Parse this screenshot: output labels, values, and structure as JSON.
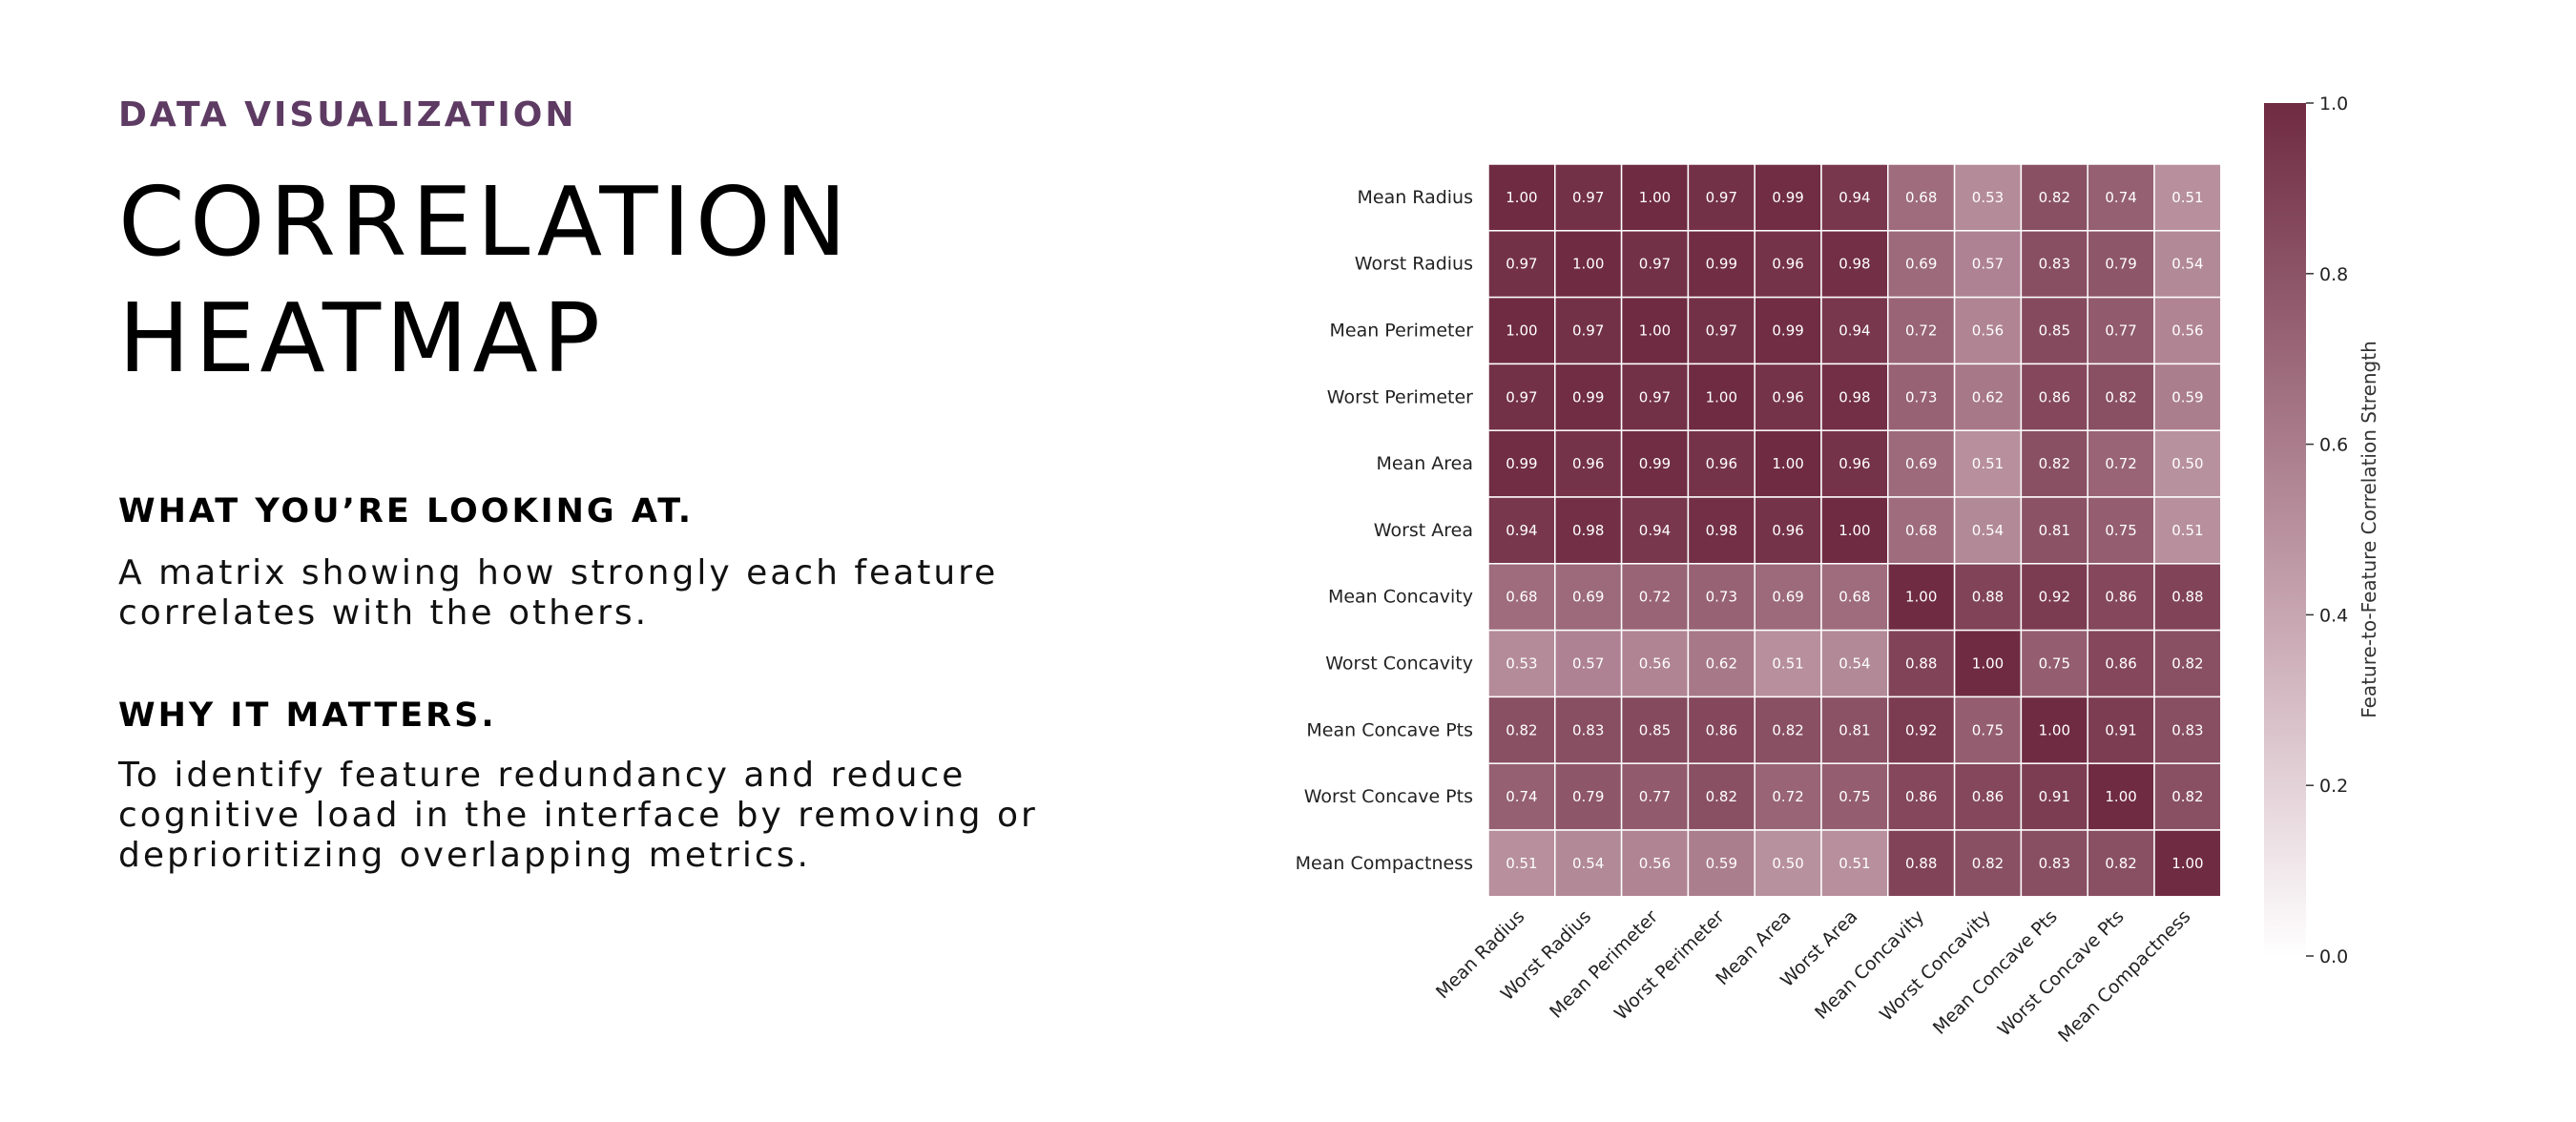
{
  "left_panel": {
    "eyebrow": "DATA VISUALIZATION",
    "title_line1": "CORRELATION",
    "title_line2": "HEATMAP",
    "section1": {
      "heading": "WHAT YOU’RE LOOKING AT.",
      "body_lines": [
        "A matrix showing how strongly each feature",
        "correlates with the others."
      ]
    },
    "section2": {
      "heading": "WHY IT MATTERS.",
      "body_lines": [
        "To identify feature redundancy and reduce",
        "cognitive load in the interface by removing or",
        "deprioritizing overlapping metrics."
      ]
    }
  },
  "colors": {
    "eyebrow": "#5e3b63",
    "scale_low": "#ffffff",
    "scale_mid": "#c7a5b1",
    "scale_high": "#6f2b42"
  },
  "chart_data": {
    "type": "heatmap",
    "title": "",
    "rows": [
      "Mean Radius",
      "Worst Radius",
      "Mean Perimeter",
      "Worst Perimeter",
      "Mean Area",
      "Worst Area",
      "Mean Concavity",
      "Worst Concavity",
      "Mean Concave Pts",
      "Worst Concave Pts",
      "Mean Compactness"
    ],
    "columns": [
      "Mean Radius",
      "Worst Radius",
      "Mean Perimeter",
      "Worst Perimeter",
      "Mean Area",
      "Worst Area",
      "Mean Concavity",
      "Worst Concavity",
      "Mean Concave Pts",
      "Worst Concave Pts",
      "Mean Compactness"
    ],
    "values": [
      [
        1.0,
        0.97,
        1.0,
        0.97,
        0.99,
        0.94,
        0.68,
        0.53,
        0.82,
        0.74,
        0.51
      ],
      [
        0.97,
        1.0,
        0.97,
        0.99,
        0.96,
        0.98,
        0.69,
        0.57,
        0.83,
        0.79,
        0.54
      ],
      [
        1.0,
        0.97,
        1.0,
        0.97,
        0.99,
        0.94,
        0.72,
        0.56,
        0.85,
        0.77,
        0.56
      ],
      [
        0.97,
        0.99,
        0.97,
        1.0,
        0.96,
        0.98,
        0.73,
        0.62,
        0.86,
        0.82,
        0.59
      ],
      [
        0.99,
        0.96,
        0.99,
        0.96,
        1.0,
        0.96,
        0.69,
        0.51,
        0.82,
        0.72,
        0.5
      ],
      [
        0.94,
        0.98,
        0.94,
        0.98,
        0.96,
        1.0,
        0.68,
        0.54,
        0.81,
        0.75,
        0.51
      ],
      [
        0.68,
        0.69,
        0.72,
        0.73,
        0.69,
        0.68,
        1.0,
        0.88,
        0.92,
        0.86,
        0.88
      ],
      [
        0.53,
        0.57,
        0.56,
        0.62,
        0.51,
        0.54,
        0.88,
        1.0,
        0.75,
        0.86,
        0.82
      ],
      [
        0.82,
        0.83,
        0.85,
        0.86,
        0.82,
        0.81,
        0.92,
        0.75,
        1.0,
        0.91,
        0.83
      ],
      [
        0.74,
        0.79,
        0.77,
        0.82,
        0.72,
        0.75,
        0.86,
        0.86,
        0.91,
        1.0,
        0.82
      ],
      [
        0.51,
        0.54,
        0.56,
        0.59,
        0.5,
        0.51,
        0.88,
        0.82,
        0.83,
        0.82,
        1.0
      ]
    ],
    "value_format": "2 decimals",
    "colorbar": {
      "label": "Feature-to-Feature Correlation Strength",
      "range": [
        0.0,
        1.0
      ],
      "ticks": [
        "0.0",
        "0.2",
        "0.4",
        "0.6",
        "0.8",
        "1.0"
      ]
    },
    "x_tick_rotation": "45 degrees",
    "grid": "white cell borders"
  }
}
